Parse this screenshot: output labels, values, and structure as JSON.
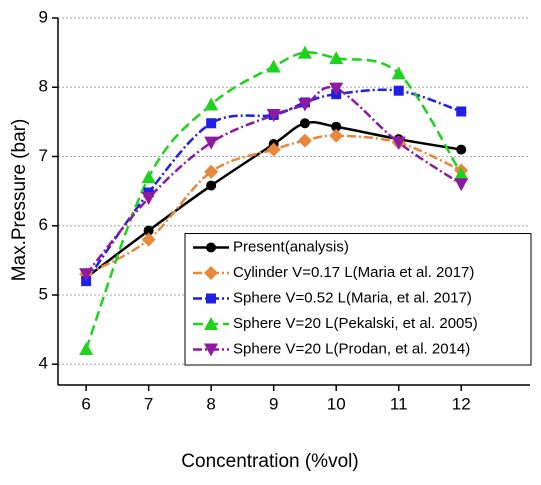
{
  "chart_data": {
    "type": "line",
    "x_label": "Concentration (%vol)",
    "y_label": "Max.Pressure (bar)",
    "x": [
      6,
      7,
      8,
      9,
      9.5,
      10,
      11,
      12
    ],
    "xlim": [
      5.55,
      13.1
    ],
    "xticks": [
      6,
      7,
      8,
      9,
      10,
      11,
      12
    ],
    "ylim": [
      3.7,
      9
    ],
    "yticks": [
      4,
      5,
      6,
      7,
      8,
      9
    ],
    "grid": true,
    "legend_position": "lower right",
    "smooth": true,
    "series": [
      {
        "name": "Present(analysis)",
        "color": "#000000",
        "marker": "circle",
        "line_style": "solid",
        "values": [
          5.25,
          5.93,
          6.58,
          7.18,
          7.48,
          7.43,
          7.25,
          7.1
        ]
      },
      {
        "name": "Cylinder V=0.17 L(Maria et al. 2017)",
        "color": "#e8883a",
        "marker": "diamond",
        "line_style": "dash-dot",
        "values": [
          5.3,
          5.8,
          6.78,
          7.1,
          7.23,
          7.3,
          7.2,
          6.8
        ]
      },
      {
        "name": "Sphere V=0.52 L(Maria, et al. 2017)",
        "color": "#1f1fe6",
        "marker": "square",
        "line_style": "dash-dot",
        "values": [
          5.2,
          6.48,
          7.48,
          7.6,
          7.78,
          7.9,
          7.95,
          7.65
        ]
      },
      {
        "name": "Sphere V=20 L(Pekalski, et al. 2005)",
        "color": "#1ed21e",
        "marker": "triangle",
        "line_style": "dash",
        "values": [
          4.22,
          6.7,
          7.75,
          8.3,
          8.5,
          8.42,
          8.2,
          6.75
        ]
      },
      {
        "name": "Sphere V=20 L(Prodan, et al. 2014)",
        "color": "#8e1aa0",
        "marker": "triangle-down",
        "line_style": "dash-dot",
        "values": [
          5.3,
          6.4,
          7.2,
          7.6,
          7.75,
          7.98,
          7.2,
          6.6
        ]
      }
    ]
  }
}
